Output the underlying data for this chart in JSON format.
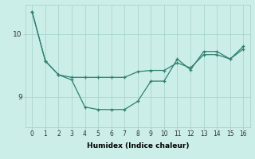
{
  "line1_x": [
    0,
    1,
    2,
    3,
    4,
    5,
    6,
    7,
    8,
    9,
    10,
    11,
    12,
    13,
    14,
    15,
    16
  ],
  "line1_y": [
    10.35,
    9.57,
    9.35,
    9.27,
    8.84,
    8.8,
    8.8,
    8.8,
    8.93,
    9.25,
    9.25,
    9.6,
    9.43,
    9.72,
    9.72,
    9.6,
    9.8
  ],
  "line2_x": [
    0,
    1,
    2,
    3,
    4,
    5,
    6,
    7,
    8,
    9,
    10,
    11,
    12,
    13,
    14,
    15,
    16
  ],
  "line2_y": [
    10.35,
    9.57,
    9.35,
    9.31,
    9.31,
    9.31,
    9.31,
    9.31,
    9.4,
    9.42,
    9.42,
    9.54,
    9.46,
    9.67,
    9.67,
    9.6,
    9.76
  ],
  "line_color": "#2e8070",
  "bg_color": "#cceee8",
  "grid_color": "#aad4ce",
  "xlabel": "Humidex (Indice chaleur)",
  "ytick_vals": [
    9,
    10
  ],
  "xlim": [
    -0.5,
    16.5
  ],
  "ylim": [
    8.52,
    10.46
  ]
}
